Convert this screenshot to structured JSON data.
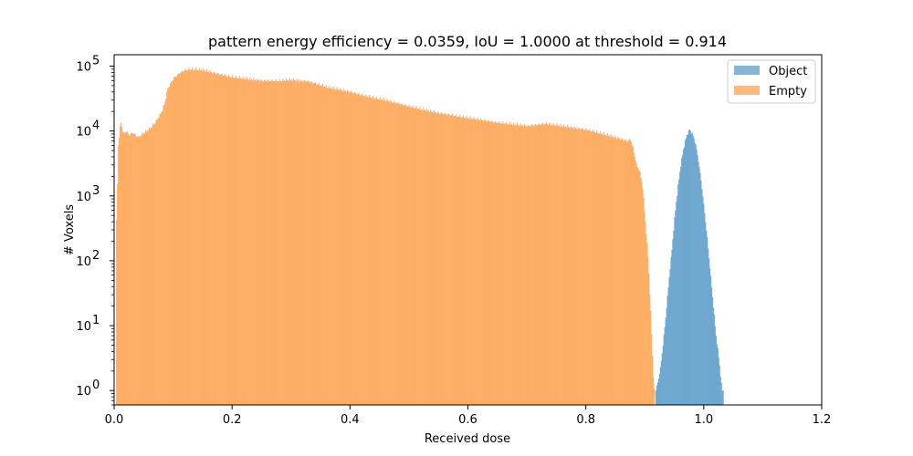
{
  "chart_data": {
    "type": "bar",
    "subtype": "histogram",
    "title": "pattern energy efficiency = 0.0359, IoU = 1.0000 at threshold = 0.914",
    "xlabel": "Received dose",
    "ylabel": "# Voxels",
    "xlim": [
      0.0,
      1.2
    ],
    "ylim": [
      0.6,
      150000
    ],
    "yscale": "log",
    "xticks": [
      "0.0",
      "0.2",
      "0.4",
      "0.6",
      "0.8",
      "1.0",
      "1.2"
    ],
    "yticks": [
      {
        "value": 1,
        "base": "10",
        "exp": "0"
      },
      {
        "value": 10,
        "base": "10",
        "exp": "1"
      },
      {
        "value": 100,
        "base": "10",
        "exp": "2"
      },
      {
        "value": 1000,
        "base": "10",
        "exp": "3"
      },
      {
        "value": 10000,
        "base": "10",
        "exp": "4"
      },
      {
        "value": 100000,
        "base": "10",
        "exp": "5"
      }
    ],
    "legend": {
      "position": "top-right"
    },
    "series": [
      {
        "name": "Object",
        "color": "#1f77b4",
        "alpha": 0.55,
        "points": [
          [
            0.918,
            1
          ],
          [
            0.925,
            2
          ],
          [
            0.93,
            5
          ],
          [
            0.935,
            15
          ],
          [
            0.94,
            50
          ],
          [
            0.945,
            150
          ],
          [
            0.95,
            500
          ],
          [
            0.955,
            1300
          ],
          [
            0.96,
            3000
          ],
          [
            0.965,
            5500
          ],
          [
            0.97,
            8500
          ],
          [
            0.975,
            10500
          ],
          [
            0.98,
            9000
          ],
          [
            0.985,
            6500
          ],
          [
            0.99,
            3500
          ],
          [
            0.995,
            1600
          ],
          [
            1.0,
            600
          ],
          [
            1.005,
            220
          ],
          [
            1.01,
            70
          ],
          [
            1.015,
            22
          ],
          [
            1.02,
            7
          ],
          [
            1.025,
            3
          ],
          [
            1.03,
            1
          ],
          [
            1.033,
            1
          ]
        ]
      },
      {
        "name": "Empty",
        "color": "#ff7f0e",
        "alpha": 0.55,
        "points": [
          [
            0.003,
            400
          ],
          [
            0.006,
            6000
          ],
          [
            0.01,
            14000
          ],
          [
            0.015,
            9000
          ],
          [
            0.02,
            10000
          ],
          [
            0.025,
            8500
          ],
          [
            0.03,
            9500
          ],
          [
            0.04,
            8000
          ],
          [
            0.05,
            9500
          ],
          [
            0.06,
            11000
          ],
          [
            0.07,
            14000
          ],
          [
            0.08,
            20000
          ],
          [
            0.085,
            27000
          ],
          [
            0.09,
            45000
          ],
          [
            0.1,
            65000
          ],
          [
            0.11,
            78000
          ],
          [
            0.12,
            88000
          ],
          [
            0.13,
            90000
          ],
          [
            0.15,
            87000
          ],
          [
            0.17,
            78000
          ],
          [
            0.2,
            68000
          ],
          [
            0.22,
            65000
          ],
          [
            0.25,
            60000
          ],
          [
            0.28,
            60000
          ],
          [
            0.3,
            62000
          ],
          [
            0.33,
            58000
          ],
          [
            0.36,
            48000
          ],
          [
            0.4,
            40000
          ],
          [
            0.43,
            34000
          ],
          [
            0.46,
            30000
          ],
          [
            0.5,
            24000
          ],
          [
            0.55,
            19000
          ],
          [
            0.6,
            16000
          ],
          [
            0.65,
            13500
          ],
          [
            0.7,
            12000
          ],
          [
            0.73,
            13000
          ],
          [
            0.76,
            12000
          ],
          [
            0.8,
            10500
          ],
          [
            0.83,
            9000
          ],
          [
            0.85,
            8000
          ],
          [
            0.87,
            7000
          ],
          [
            0.875,
            7500
          ],
          [
            0.88,
            5000
          ],
          [
            0.885,
            3000
          ],
          [
            0.89,
            2500
          ],
          [
            0.895,
            1500
          ],
          [
            0.9,
            400
          ],
          [
            0.905,
            100
          ],
          [
            0.91,
            10
          ],
          [
            0.913,
            2
          ],
          [
            0.915,
            1
          ]
        ]
      }
    ]
  }
}
